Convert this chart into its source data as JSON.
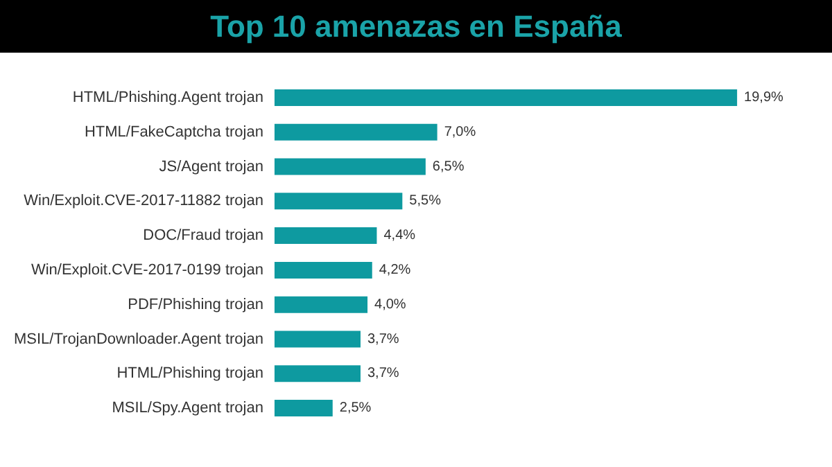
{
  "chart_data": {
    "type": "bar",
    "orientation": "horizontal",
    "title": "Top 10 amenazas en España",
    "categories": [
      "HTML/Phishing.Agent trojan",
      "HTML/FakeCaptcha trojan",
      "JS/Agent trojan",
      "Win/Exploit.CVE-2017-11882 trojan",
      "DOC/Fraud trojan",
      "Win/Exploit.CVE-2017-0199 trojan",
      "PDF/Phishing trojan",
      "MSIL/TrojanDownloader.Agent trojan",
      "HTML/Phishing trojan",
      "MSIL/Spy.Agent trojan"
    ],
    "values": [
      19.9,
      7.0,
      6.5,
      5.5,
      4.4,
      4.2,
      4.0,
      3.7,
      3.7,
      2.5
    ],
    "value_labels": [
      "19,9%",
      "7,0%",
      "6,5%",
      "5,5%",
      "4,4%",
      "4,2%",
      "4,0%",
      "3,7%",
      "3,7%",
      "2,5%"
    ],
    "color": "#0e9aa0"
  }
}
